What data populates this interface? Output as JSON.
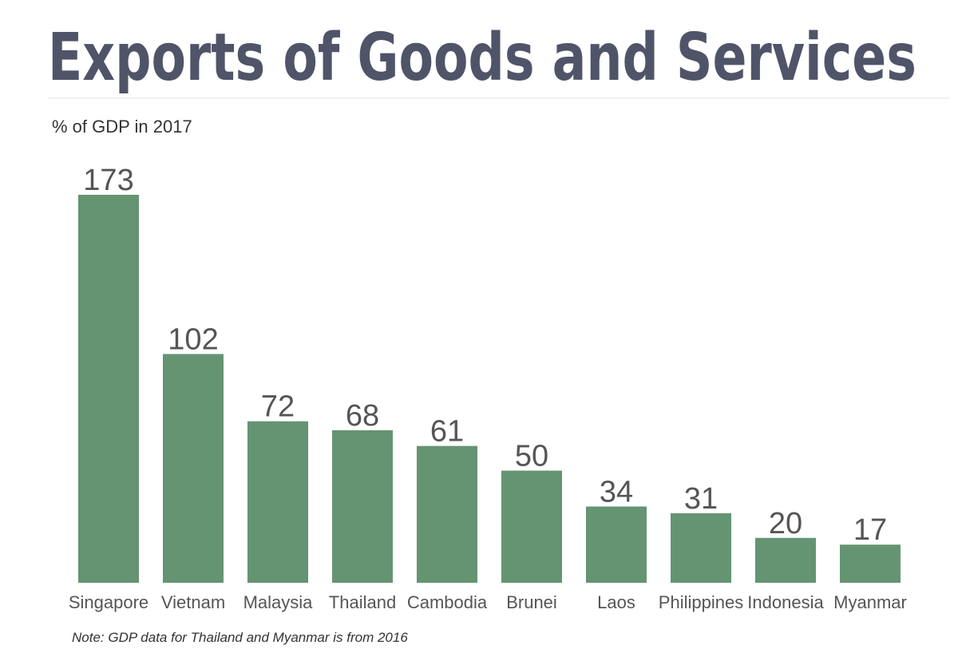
{
  "chart_data": {
    "type": "bar",
    "title": "Exports of Goods and Services",
    "subtitle": "% of GDP in 2017",
    "note": "Note: GDP data for Thailand and Myanmar is from 2016",
    "categories": [
      "Singapore",
      "Vietnam",
      "Malaysia",
      "Thailand",
      "Cambodia",
      "Brunei",
      "Laos",
      "Philippines",
      "Indonesia",
      "Myanmar"
    ],
    "values": [
      173,
      102,
      72,
      68,
      61,
      50,
      34,
      31,
      20,
      17
    ],
    "color": "#659472"
  }
}
